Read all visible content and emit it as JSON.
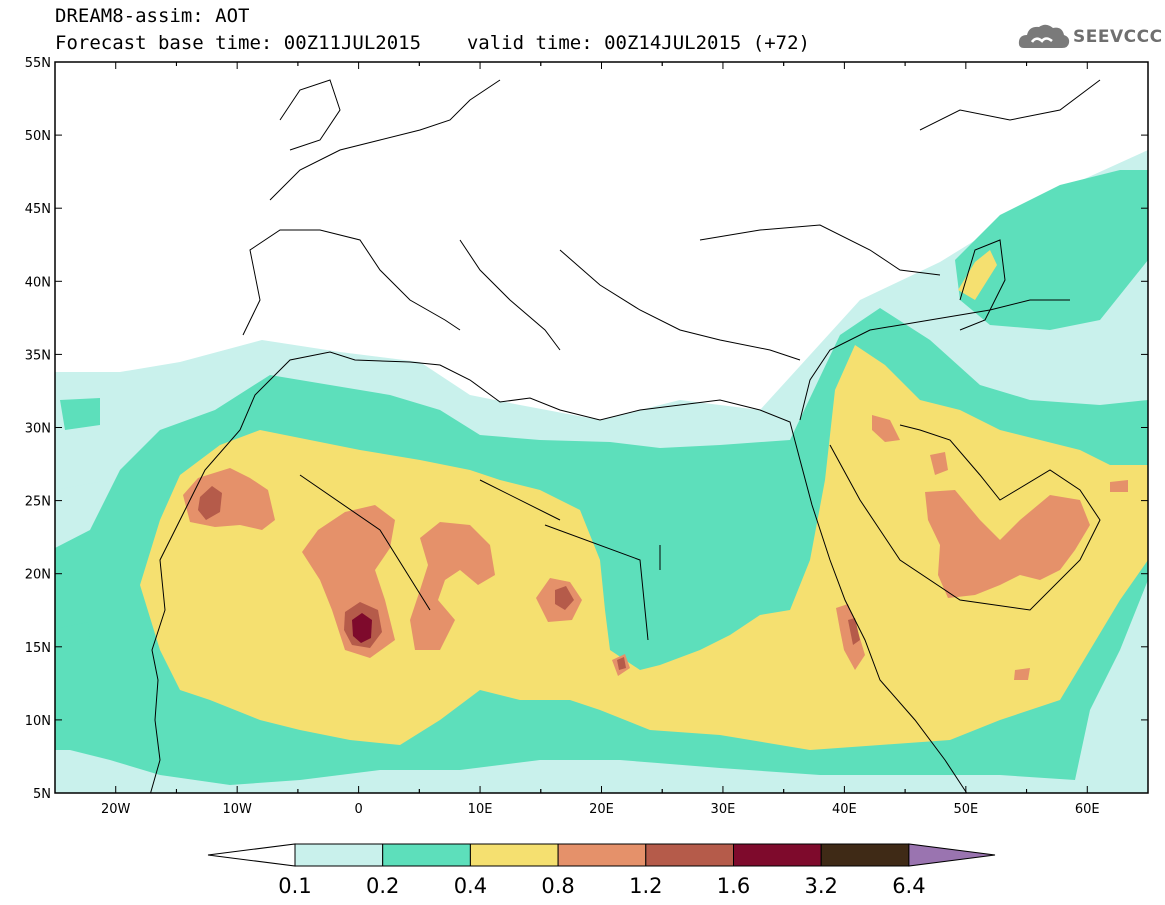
{
  "header": {
    "model": "DREAM8-assim: AOT",
    "base_time": "Forecast base time: 00Z11JUL2015",
    "valid_time": "valid time: 00Z14JUL2015 (+72)"
  },
  "brand": {
    "name": "SEEVCCC",
    "icon": "cloud-logo-icon"
  },
  "map": {
    "lon_labels": [
      "20W",
      "10W",
      "0",
      "10E",
      "20E",
      "30E",
      "40E",
      "50E",
      "60E"
    ],
    "lat_labels": [
      "55N",
      "50N",
      "45N",
      "40N",
      "35N",
      "30N",
      "25N",
      "20N",
      "15N",
      "10N",
      "5N"
    ],
    "lon_range": [
      -25,
      65
    ],
    "lat_range": [
      5,
      55
    ]
  },
  "colorbar": {
    "labels": [
      "0.1",
      "0.2",
      "0.4",
      "0.8",
      "1.2",
      "1.6",
      "3.2",
      "6.4"
    ],
    "colors": [
      "#c9f1ec",
      "#5ddfbb",
      "#f5e070",
      "#e5916a",
      "#b55b4a",
      "#7e0a2c",
      "#3f2a16",
      "#9a74b0"
    ],
    "under_color": "#ffffff"
  },
  "colors": {
    "level_0_1": "#c9f1ec",
    "level_0_2": "#5ddfbb",
    "level_0_4": "#f5e070",
    "level_0_8": "#e5916a",
    "level_1_2": "#b55b4a",
    "level_1_6": "#7e0a2c",
    "level_3_2": "#3f2a16",
    "brand": "#6f6f6f"
  }
}
